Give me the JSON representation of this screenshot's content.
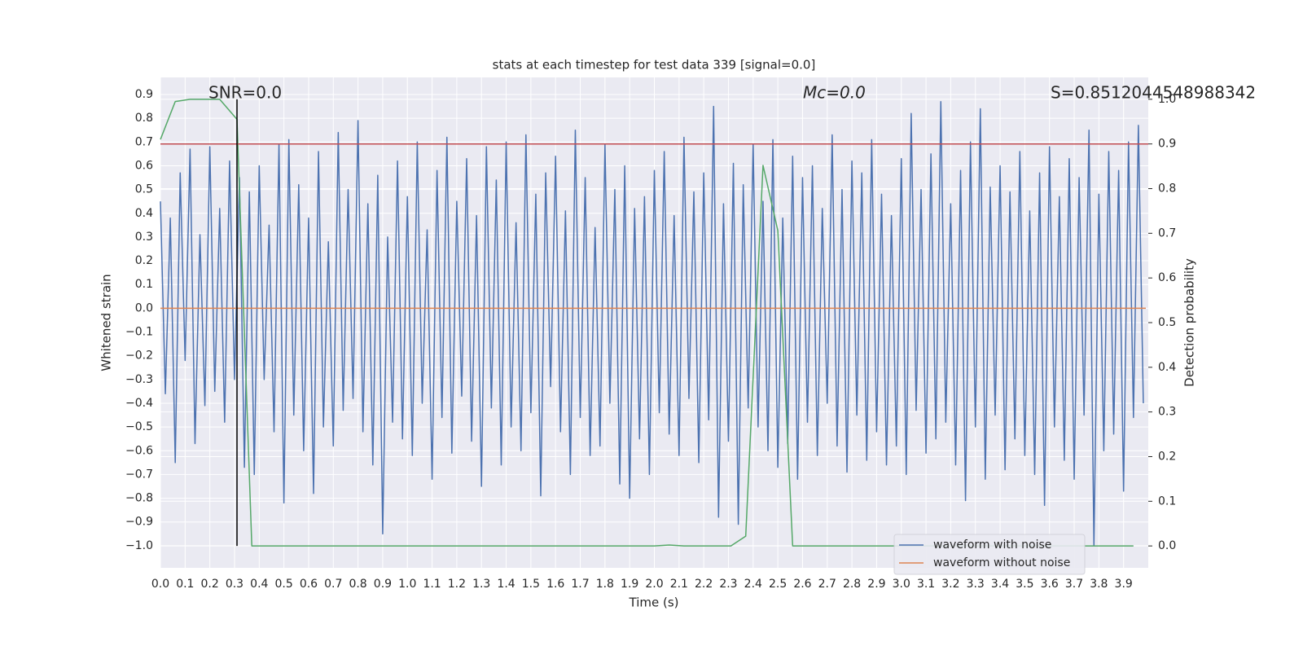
{
  "chart_data": {
    "type": "line",
    "title": "stats at each timestep for test data 339 [signal=0.0]",
    "x_label": "Time (s)",
    "y_label": "Whitened strain",
    "y2_label": "Detection probability",
    "annotations": [
      "SNR=0.0",
      "Mc=0.0",
      "S=0.8512044548988342"
    ],
    "grid": true,
    "legend": "lower right",
    "xlim": [
      0,
      4.0
    ],
    "ylim": [
      -1.093,
      0.972
    ],
    "y2lim": [
      -0.049,
      1.049
    ],
    "xticks": [
      {
        "value": 0.0,
        "label": "0.0"
      },
      {
        "value": 0.1,
        "label": "0.1"
      },
      {
        "value": 0.2,
        "label": "0.2"
      },
      {
        "value": 0.3,
        "label": "0.3"
      },
      {
        "value": 0.4,
        "label": "0.4"
      },
      {
        "value": 0.5,
        "label": "0.5"
      },
      {
        "value": 0.6,
        "label": "0.6"
      },
      {
        "value": 0.7,
        "label": "0.7"
      },
      {
        "value": 0.8,
        "label": "0.8"
      },
      {
        "value": 0.9,
        "label": "0.9"
      },
      {
        "value": 1.0,
        "label": "1.0"
      },
      {
        "value": 1.1,
        "label": "1.1"
      },
      {
        "value": 1.2,
        "label": "1.2"
      },
      {
        "value": 1.3,
        "label": "1.3"
      },
      {
        "value": 1.4,
        "label": "1.4"
      },
      {
        "value": 1.5,
        "label": "1.5"
      },
      {
        "value": 1.6,
        "label": "1.6"
      },
      {
        "value": 1.7,
        "label": "1.7"
      },
      {
        "value": 1.8,
        "label": "1.8"
      },
      {
        "value": 1.9,
        "label": "1.9"
      },
      {
        "value": 2.0,
        "label": "2.0"
      },
      {
        "value": 2.1,
        "label": "2.1"
      },
      {
        "value": 2.2,
        "label": "2.2"
      },
      {
        "value": 2.3,
        "label": "2.3"
      },
      {
        "value": 2.4,
        "label": "2.4"
      },
      {
        "value": 2.5,
        "label": "2.5"
      },
      {
        "value": 2.6,
        "label": "2.6"
      },
      {
        "value": 2.7,
        "label": "2.7"
      },
      {
        "value": 2.8,
        "label": "2.8"
      },
      {
        "value": 2.9,
        "label": "2.9"
      },
      {
        "value": 3.0,
        "label": "3.0"
      },
      {
        "value": 3.1,
        "label": "3.1"
      },
      {
        "value": 3.2,
        "label": "3.2"
      },
      {
        "value": 3.3,
        "label": "3.3"
      },
      {
        "value": 3.4,
        "label": "3.4"
      },
      {
        "value": 3.5,
        "label": "3.5"
      },
      {
        "value": 3.6,
        "label": "3.6"
      },
      {
        "value": 3.7,
        "label": "3.7"
      },
      {
        "value": 3.8,
        "label": "3.8"
      },
      {
        "value": 3.9,
        "label": "3.9"
      }
    ],
    "yticks": [
      {
        "value": -1.0,
        "label": "−1.0"
      },
      {
        "value": -0.9,
        "label": "−0.9"
      },
      {
        "value": -0.8,
        "label": "−0.8"
      },
      {
        "value": -0.7,
        "label": "−0.7"
      },
      {
        "value": -0.6,
        "label": "−0.6"
      },
      {
        "value": -0.5,
        "label": "−0.5"
      },
      {
        "value": -0.4,
        "label": "−0.4"
      },
      {
        "value": -0.3,
        "label": "−0.3"
      },
      {
        "value": -0.2,
        "label": "−0.2"
      },
      {
        "value": -0.1,
        "label": "−0.1"
      },
      {
        "value": 0.0,
        "label": "0.0"
      },
      {
        "value": 0.1,
        "label": "0.1"
      },
      {
        "value": 0.2,
        "label": "0.2"
      },
      {
        "value": 0.3,
        "label": "0.3"
      },
      {
        "value": 0.4,
        "label": "0.4"
      },
      {
        "value": 0.5,
        "label": "0.5"
      },
      {
        "value": 0.6,
        "label": "0.6"
      },
      {
        "value": 0.7,
        "label": "0.7"
      },
      {
        "value": 0.8,
        "label": "0.8"
      },
      {
        "value": 0.9,
        "label": "0.9"
      }
    ],
    "y2ticks": [
      {
        "value": 0.0,
        "label": "0.0"
      },
      {
        "value": 0.1,
        "label": "0.1"
      },
      {
        "value": 0.2,
        "label": "0.2"
      },
      {
        "value": 0.3,
        "label": "0.3"
      },
      {
        "value": 0.4,
        "label": "0.4"
      },
      {
        "value": 0.5,
        "label": "0.5"
      },
      {
        "value": 0.6,
        "label": "0.6"
      },
      {
        "value": 0.7,
        "label": "0.7"
      },
      {
        "value": 0.8,
        "label": "0.8"
      },
      {
        "value": 0.9,
        "label": "0.9"
      },
      {
        "value": 1.0,
        "label": "1.0"
      }
    ],
    "series": [
      {
        "name": "waveform with noise",
        "color": "#4c72b0",
        "x": [
          0,
          0.02,
          0.04,
          0.06,
          0.08,
          0.1,
          0.12,
          0.14,
          0.16,
          0.18,
          0.2,
          0.22,
          0.24,
          0.26,
          0.28,
          0.3,
          0.32,
          0.34,
          0.36,
          0.38,
          0.4,
          0.42,
          0.44,
          0.46,
          0.48,
          0.5,
          0.52,
          0.54,
          0.56,
          0.58,
          0.6,
          0.62,
          0.64,
          0.66,
          0.68,
          0.7,
          0.72,
          0.74,
          0.76,
          0.78,
          0.8,
          0.82,
          0.84,
          0.86,
          0.88,
          0.9,
          0.92,
          0.94,
          0.96,
          0.98,
          1.0,
          1.02,
          1.04,
          1.06,
          1.08,
          1.1,
          1.12,
          1.14,
          1.16,
          1.18,
          1.2,
          1.22,
          1.24,
          1.26,
          1.28,
          1.3,
          1.32,
          1.34,
          1.36,
          1.38,
          1.4,
          1.42,
          1.44,
          1.46,
          1.48,
          1.5,
          1.52,
          1.54,
          1.56,
          1.58,
          1.6,
          1.62,
          1.64,
          1.66,
          1.68,
          1.7,
          1.72,
          1.74,
          1.76,
          1.78,
          1.8,
          1.82,
          1.84,
          1.86,
          1.88,
          1.9,
          1.92,
          1.94,
          1.96,
          1.98,
          2.0,
          2.02,
          2.04,
          2.06,
          2.08,
          2.1,
          2.12,
          2.14,
          2.16,
          2.18,
          2.2,
          2.22,
          2.24,
          2.26,
          2.28,
          2.3,
          2.32,
          2.34,
          2.36,
          2.38,
          2.4,
          2.42,
          2.44,
          2.46,
          2.48,
          2.5,
          2.52,
          2.54,
          2.56,
          2.58,
          2.6,
          2.62,
          2.64,
          2.66,
          2.68,
          2.7,
          2.72,
          2.74,
          2.76,
          2.78,
          2.8,
          2.82,
          2.84,
          2.86,
          2.88,
          2.9,
          2.92,
          2.94,
          2.96,
          2.98,
          3.0,
          3.02,
          3.04,
          3.06,
          3.08,
          3.1,
          3.12,
          3.14,
          3.16,
          3.18,
          3.2,
          3.22,
          3.24,
          3.26,
          3.28,
          3.3,
          3.32,
          3.34,
          3.36,
          3.38,
          3.4,
          3.42,
          3.44,
          3.46,
          3.48,
          3.5,
          3.52,
          3.54,
          3.56,
          3.58,
          3.6,
          3.62,
          3.64,
          3.66,
          3.68,
          3.7,
          3.72,
          3.74,
          3.76,
          3.78,
          3.8,
          3.82,
          3.84,
          3.86,
          3.88,
          3.9,
          3.92,
          3.94,
          3.96,
          3.98
        ],
        "values": [
          0.45,
          -0.36,
          0.38,
          -0.65,
          0.57,
          -0.22,
          0.67,
          -0.57,
          0.31,
          -0.41,
          0.68,
          -0.35,
          0.42,
          -0.48,
          0.62,
          -0.3,
          0.55,
          -0.67,
          0.49,
          -0.7,
          0.6,
          -0.3,
          0.35,
          -0.52,
          0.69,
          -0.82,
          0.71,
          -0.45,
          0.52,
          -0.6,
          0.38,
          -0.78,
          0.66,
          -0.5,
          0.28,
          -0.58,
          0.74,
          -0.43,
          0.5,
          -0.38,
          0.79,
          -0.52,
          0.44,
          -0.66,
          0.56,
          -0.95,
          0.3,
          -0.48,
          0.62,
          -0.55,
          0.47,
          -0.62,
          0.7,
          -0.4,
          0.33,
          -0.72,
          0.58,
          -0.46,
          0.72,
          -0.61,
          0.45,
          -0.37,
          0.63,
          -0.56,
          0.39,
          -0.75,
          0.68,
          -0.42,
          0.54,
          -0.66,
          0.7,
          -0.5,
          0.36,
          -0.6,
          0.73,
          -0.44,
          0.48,
          -0.79,
          0.57,
          -0.33,
          0.64,
          -0.52,
          0.41,
          -0.7,
          0.75,
          -0.46,
          0.55,
          -0.62,
          0.34,
          -0.58,
          0.69,
          -0.4,
          0.5,
          -0.74,
          0.6,
          -0.8,
          0.42,
          -0.55,
          0.47,
          -0.7,
          0.58,
          -0.44,
          0.66,
          -0.53,
          0.39,
          -0.62,
          0.72,
          -0.38,
          0.49,
          -0.65,
          0.57,
          -0.47,
          0.85,
          -0.88,
          0.44,
          -0.56,
          0.61,
          -0.91,
          0.52,
          -0.42,
          0.69,
          -0.5,
          0.45,
          -0.6,
          0.71,
          -0.67,
          0.38,
          -0.57,
          0.64,
          -0.72,
          0.55,
          -0.48,
          0.6,
          -0.62,
          0.42,
          -0.4,
          0.73,
          -0.58,
          0.5,
          -0.69,
          0.62,
          -0.45,
          0.57,
          -0.64,
          0.71,
          -0.52,
          0.48,
          -0.66,
          0.39,
          -0.58,
          0.63,
          -0.7,
          0.82,
          -0.43,
          0.5,
          -0.61,
          0.65,
          -0.55,
          0.87,
          -0.48,
          0.44,
          -0.66,
          0.58,
          -0.81,
          0.7,
          -0.5,
          0.84,
          -0.72,
          0.51,
          -0.45,
          0.6,
          -0.68,
          0.49,
          -0.55,
          0.66,
          -0.62,
          0.41,
          -0.7,
          0.57,
          -0.83,
          0.68,
          -0.5,
          0.47,
          -0.64,
          0.63,
          -0.72,
          0.55,
          -0.45,
          0.75,
          -1.0,
          0.48,
          -0.6,
          0.66,
          -0.53,
          0.58,
          -0.77,
          0.7,
          -0.46,
          0.77,
          -0.4
        ]
      },
      {
        "name": "waveform without noise",
        "color": "#dd8452",
        "x": [
          0,
          3.99
        ],
        "values": [
          0,
          0
        ]
      },
      {
        "color": "#55a868",
        "axis": "y2",
        "x": [
          0.0,
          0.06,
          0.12,
          0.24,
          0.31,
          0.37,
          0.43,
          2.0,
          2.06,
          2.12,
          2.31,
          2.37,
          2.44,
          2.5,
          2.56,
          3.94
        ],
        "values": [
          0.91,
          0.995,
          1.0,
          1.0,
          0.955,
          0.0,
          0.0,
          0.0,
          0.002,
          0.0,
          0.0,
          0.022,
          0.852,
          0.706,
          0.0,
          0.0
        ]
      },
      {
        "color": "#c44e52",
        "axis": "y2",
        "x": [
          0,
          4.0
        ],
        "values": [
          0.9,
          0.9
        ]
      },
      {
        "color": "#000000",
        "axis": "y2",
        "x": [
          0.31,
          0.31
        ],
        "values": [
          0.0,
          1.0
        ]
      }
    ]
  }
}
